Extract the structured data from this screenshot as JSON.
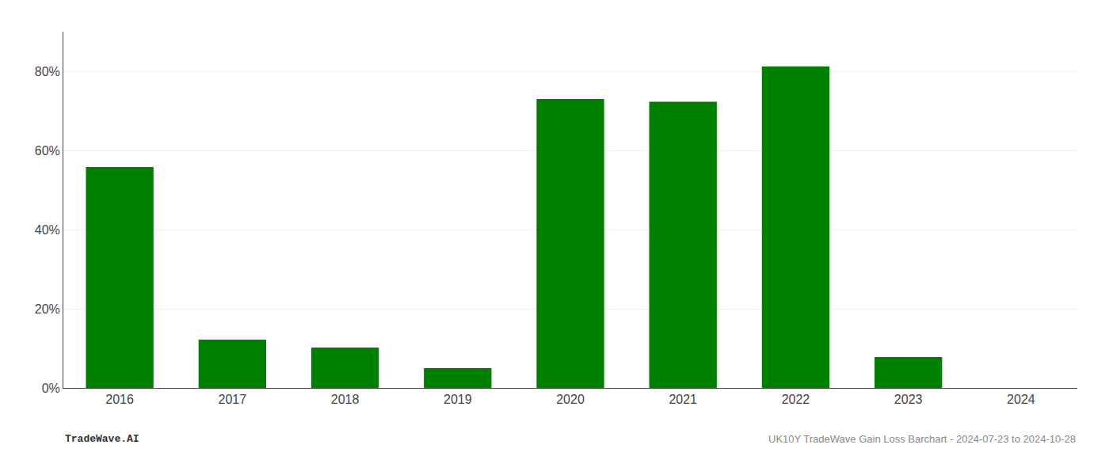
{
  "chart_data": {
    "type": "bar",
    "categories": [
      "2016",
      "2017",
      "2018",
      "2019",
      "2020",
      "2021",
      "2022",
      "2023",
      "2024"
    ],
    "values": [
      55.8,
      12.2,
      10.2,
      5.0,
      73.0,
      72.3,
      81.2,
      7.8,
      0.0
    ],
    "color": "#008000",
    "ylim": [
      0,
      90
    ],
    "yticks": [
      {
        "value": 0,
        "label": "0%"
      },
      {
        "value": 20,
        "label": "20%"
      },
      {
        "value": 40,
        "label": "40%"
      },
      {
        "value": 60,
        "label": "60%"
      },
      {
        "value": 80,
        "label": "80%"
      }
    ],
    "grid": true,
    "annotations": [
      "TradeWave.AI",
      "UK10Y TradeWave Gain Loss Barchart - 2024-07-23 to 2024-10-28"
    ]
  }
}
